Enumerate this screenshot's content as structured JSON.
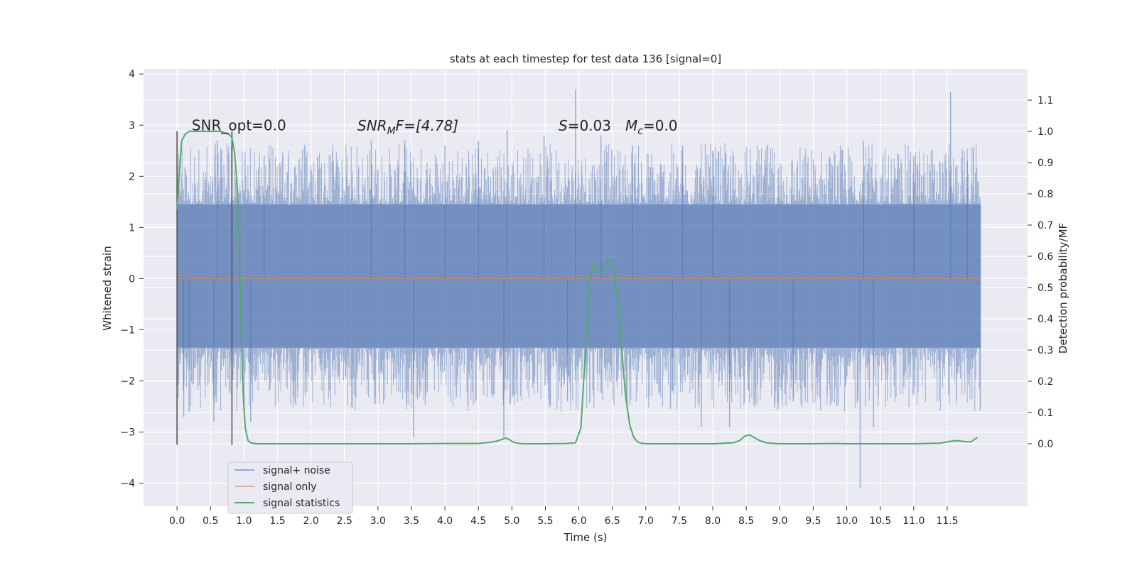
{
  "chart_data": {
    "type": "line",
    "title": "stats at each timestep for test data 136 [signal=0]",
    "xlabel": "Time (s)",
    "ylabel": "Whitened strain",
    "y2label": "Detection probability/MF",
    "xlim": [
      -0.5,
      12.7
    ],
    "ylim": [
      -4.45,
      4.1
    ],
    "y2lim": [
      -0.2,
      1.2
    ],
    "x_ticks": [
      0.0,
      0.5,
      1.0,
      1.5,
      2.0,
      2.5,
      3.0,
      3.5,
      4.0,
      4.5,
      5.0,
      5.5,
      6.0,
      6.5,
      7.0,
      7.5,
      8.0,
      8.5,
      9.0,
      9.5,
      10.0,
      10.5,
      11.0,
      11.5
    ],
    "x_tick_labels": [
      "0.0",
      "0.5",
      "1.0",
      "1.5",
      "2.0",
      "2.5",
      "3.0",
      "3.5",
      "4.0",
      "4.5",
      "5.0",
      "5.5",
      "6.0",
      "6.5",
      "7.0",
      "7.5",
      "8.0",
      "8.5",
      "9.0",
      "9.5",
      "10.0",
      "10.5",
      "11.0",
      "11.5"
    ],
    "y_ticks": [
      4,
      3,
      2,
      1,
      0,
      -1,
      -2,
      -3,
      -4
    ],
    "y_tick_labels": [
      "4",
      "3",
      "2",
      "1",
      "0",
      "−1",
      "−2",
      "−3",
      "−4"
    ],
    "y2_ticks": [
      1.1,
      1.0,
      0.9,
      0.8,
      0.7,
      0.6,
      0.5,
      0.4,
      0.3,
      0.2,
      0.1,
      0.0
    ],
    "y2_tick_labels": [
      "1.1",
      "1.0",
      "0.9",
      "0.8",
      "0.7",
      "0.6",
      "0.5",
      "0.4",
      "0.3",
      "0.2",
      "0.1",
      "0.0"
    ],
    "grid": true,
    "legend": {
      "placement": "lower-left",
      "entries": [
        "signal+ noise",
        "signal only",
        "signal statistics"
      ]
    },
    "colors": {
      "noise": "#4c72b0",
      "signal": "#dd8452",
      "stats": "#55a868",
      "background": "#eaeaf2",
      "marker": "#555555"
    },
    "noise": {
      "x_range": [
        0.0,
        12.0
      ],
      "envelope": [
        -1.35,
        1.45
      ],
      "spikes": [
        {
          "x": 0.1,
          "y": -2.7
        },
        {
          "x": 0.18,
          "y": -2.6
        },
        {
          "x": 0.55,
          "y": -2.8
        },
        {
          "x": 0.6,
          "y": 2.7
        },
        {
          "x": 1.1,
          "y": -2.8
        },
        {
          "x": 1.3,
          "y": 2.4
        },
        {
          "x": 2.9,
          "y": 2.7
        },
        {
          "x": 3.4,
          "y": 2.7
        },
        {
          "x": 3.53,
          "y": -3.1
        },
        {
          "x": 4.0,
          "y": 2.6
        },
        {
          "x": 4.5,
          "y": 2.7
        },
        {
          "x": 4.88,
          "y": -3.1
        },
        {
          "x": 4.93,
          "y": 2.9
        },
        {
          "x": 5.48,
          "y": 2.8
        },
        {
          "x": 5.83,
          "y": -2.4
        },
        {
          "x": 5.95,
          "y": 3.7
        },
        {
          "x": 6.33,
          "y": 2.8
        },
        {
          "x": 6.8,
          "y": 2.6
        },
        {
          "x": 7.4,
          "y": -2.2
        },
        {
          "x": 7.55,
          "y": 2.6
        },
        {
          "x": 7.83,
          "y": -2.9
        },
        {
          "x": 8.0,
          "y": 2.5
        },
        {
          "x": 8.25,
          "y": -2.9
        },
        {
          "x": 9.2,
          "y": -2.4
        },
        {
          "x": 10.2,
          "y": -4.1
        },
        {
          "x": 10.25,
          "y": 2.7
        },
        {
          "x": 10.4,
          "y": -2.9
        },
        {
          "x": 11.0,
          "y": 2.4
        },
        {
          "x": 11.55,
          "y": 3.65
        },
        {
          "x": 11.8,
          "y": 2.3
        }
      ]
    },
    "signal_only": {
      "x": [
        0.0,
        12.0
      ],
      "y": [
        0.0,
        0.0
      ]
    },
    "markers": {
      "x": [
        0.0,
        0.82
      ],
      "y_range": [
        -3.25,
        2.88
      ]
    },
    "stats": {
      "x": [
        0.0,
        0.03,
        0.07,
        0.12,
        0.18,
        0.25,
        0.35,
        0.45,
        0.55,
        0.65,
        0.72,
        0.78,
        0.82,
        0.86,
        0.9,
        0.93,
        0.96,
        0.99,
        1.02,
        1.06,
        1.1,
        1.2,
        1.5,
        2.0,
        2.5,
        3.0,
        3.5,
        4.0,
        4.5,
        4.7,
        4.8,
        4.9,
        4.95,
        5.0,
        5.05,
        5.15,
        5.3,
        5.5,
        5.8,
        5.95,
        6.03,
        6.1,
        6.16,
        6.22,
        6.28,
        6.34,
        6.4,
        6.46,
        6.52,
        6.58,
        6.64,
        6.7,
        6.76,
        6.82,
        6.88,
        6.95,
        7.05,
        7.2,
        7.5,
        8.0,
        8.3,
        8.4,
        8.48,
        8.55,
        8.62,
        8.7,
        8.8,
        9.0,
        9.5,
        9.8,
        10.0,
        10.5,
        11.0,
        11.4,
        11.55,
        11.65,
        11.75,
        11.85,
        11.95
      ],
      "y": [
        0.75,
        0.85,
        0.97,
        0.99,
        1.0,
        1.0,
        1.0,
        1.0,
        1.0,
        1.0,
        0.995,
        0.99,
        0.98,
        0.93,
        0.82,
        0.6,
        0.35,
        0.15,
        0.05,
        0.01,
        0.003,
        0.0,
        0.0,
        0.0,
        0.0,
        0.0,
        0.0,
        0.001,
        0.001,
        0.005,
        0.01,
        0.018,
        0.015,
        0.008,
        0.003,
        0.0,
        0.0,
        0.0,
        0.001,
        0.003,
        0.05,
        0.3,
        0.52,
        0.575,
        0.55,
        0.55,
        0.575,
        0.59,
        0.56,
        0.45,
        0.3,
        0.15,
        0.06,
        0.02,
        0.005,
        0.001,
        0.0,
        0.0,
        0.0,
        0.0,
        0.003,
        0.01,
        0.025,
        0.028,
        0.02,
        0.01,
        0.003,
        0.0,
        0.0,
        0.001,
        0.0,
        0.0,
        0.0,
        0.002,
        0.008,
        0.01,
        0.007,
        0.006,
        0.02
      ]
    },
    "annotations": {
      "snr_opt": {
        "x": 0.22,
        "y": 2.9,
        "text": "SNR_opt=0.0"
      },
      "snr_mf_name": "SNR",
      "snr_mf_sub": "M",
      "snr_mf_rest": "F=[4.78]",
      "s_name": "S",
      "s_rest": "=0.03",
      "mc_name": "M",
      "mc_sub": "c",
      "mc_rest": "=0.0"
    }
  }
}
